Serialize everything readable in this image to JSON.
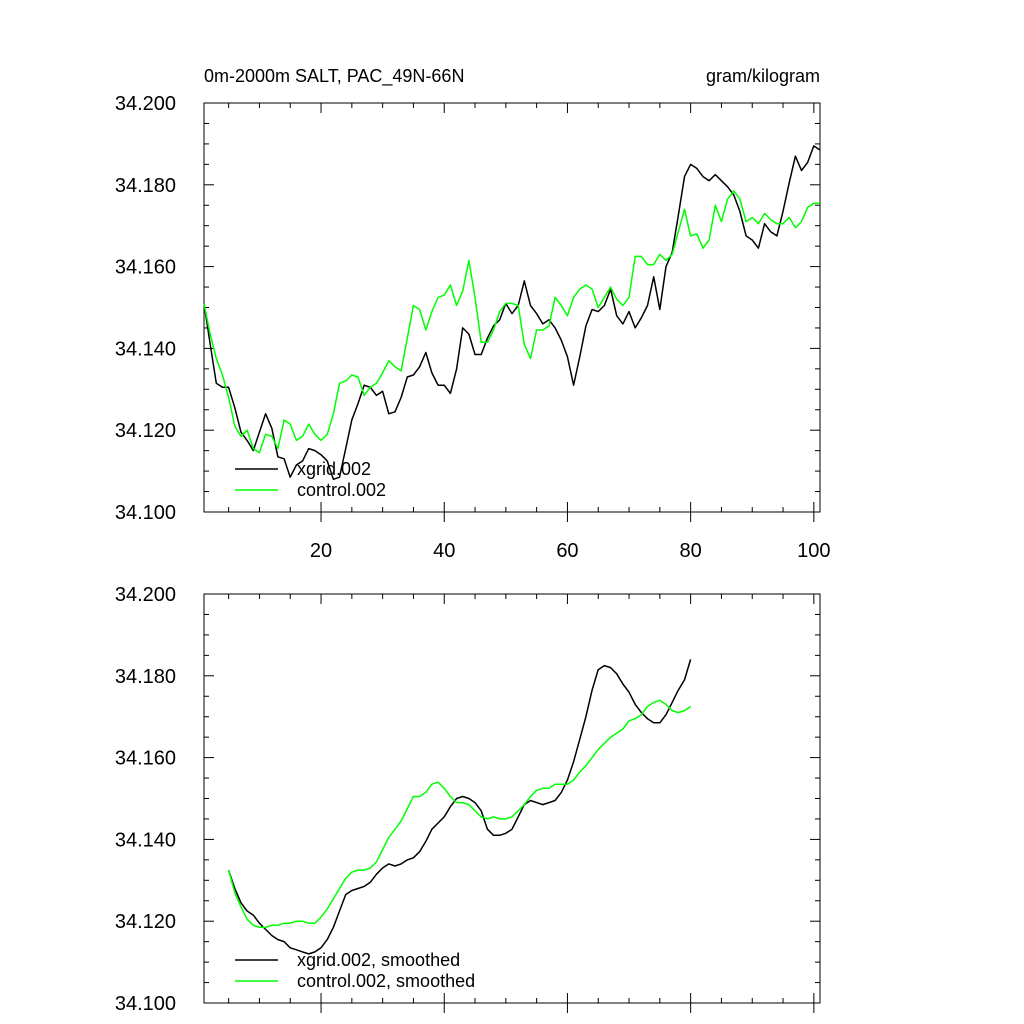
{
  "header": {
    "title": "0m-2000m SALT, PAC_49N-66N",
    "units": "gram/kilogram"
  },
  "colors": {
    "xgrid": "#000000",
    "control": "#00ff00"
  },
  "chart_data": [
    {
      "type": "line",
      "xlim": [
        1,
        101
      ],
      "ylim": [
        34.1,
        34.2
      ],
      "yticks": [
        "34.100",
        "34.120",
        "34.140",
        "34.160",
        "34.180",
        "34.200"
      ],
      "xticks": [
        "20",
        "40",
        "60",
        "80",
        "100"
      ],
      "x_tick_values": [
        20,
        40,
        60,
        80,
        100
      ],
      "legend_position": "bottom-left",
      "series": [
        {
          "name": "xgrid.002",
          "color_key": "xgrid",
          "x_start": 1,
          "values": [
            34.151,
            34.141,
            34.1315,
            34.1305,
            34.1305,
            34.1255,
            34.1195,
            34.1175,
            34.115,
            34.1195,
            34.124,
            34.1205,
            34.1135,
            34.113,
            34.1085,
            34.1115,
            34.1125,
            34.1155,
            34.115,
            34.114,
            34.1125,
            34.108,
            34.1085,
            34.1155,
            34.1225,
            34.1265,
            34.131,
            34.1305,
            34.1285,
            34.1295,
            34.124,
            34.1245,
            34.128,
            34.133,
            34.1335,
            34.1355,
            34.139,
            34.134,
            34.131,
            34.131,
            34.129,
            34.135,
            34.145,
            34.1435,
            34.1385,
            34.1385,
            34.1425,
            34.1455,
            34.147,
            34.151,
            34.1485,
            34.1505,
            34.1565,
            34.1505,
            34.1485,
            34.146,
            34.147,
            34.145,
            34.142,
            34.138,
            34.131,
            34.138,
            34.1455,
            34.1495,
            34.149,
            34.1505,
            34.1545,
            34.148,
            34.146,
            34.149,
            34.145,
            34.1475,
            34.1505,
            34.1575,
            34.1495,
            34.16,
            34.1635,
            34.1725,
            34.182,
            34.185,
            34.184,
            34.182,
            34.181,
            34.1825,
            34.181,
            34.1795,
            34.1775,
            34.1735,
            34.1675,
            34.1665,
            34.1645,
            34.1705,
            34.1685,
            34.1675,
            34.1735,
            34.1805,
            34.187,
            34.1835,
            34.1855,
            34.1895,
            34.1885
          ]
        },
        {
          "name": "control.002",
          "color_key": "control",
          "x_start": 1,
          "values": [
            34.151,
            34.1435,
            34.1375,
            34.1335,
            34.128,
            34.121,
            34.1185,
            34.12,
            34.1155,
            34.1145,
            34.119,
            34.1185,
            34.1155,
            34.1225,
            34.1215,
            34.1175,
            34.1185,
            34.1215,
            34.119,
            34.1175,
            34.119,
            34.124,
            34.1315,
            34.132,
            34.1335,
            34.133,
            34.1285,
            34.1305,
            34.1315,
            34.134,
            34.137,
            34.1355,
            34.1345,
            34.1425,
            34.1505,
            34.1495,
            34.1445,
            34.149,
            34.1525,
            34.153,
            34.1555,
            34.1505,
            34.154,
            34.1615,
            34.1525,
            34.1415,
            34.1415,
            34.1445,
            34.149,
            34.151,
            34.151,
            34.1505,
            34.141,
            34.1375,
            34.1445,
            34.1445,
            34.1455,
            34.1525,
            34.1505,
            34.148,
            34.1525,
            34.1545,
            34.1555,
            34.1545,
            34.15,
            34.1525,
            34.155,
            34.152,
            34.1505,
            34.1525,
            34.1625,
            34.1625,
            34.1605,
            34.1605,
            34.163,
            34.1615,
            34.163,
            34.1685,
            34.174,
            34.1675,
            34.168,
            34.1645,
            34.1665,
            34.175,
            34.171,
            34.1765,
            34.1785,
            34.1765,
            34.171,
            34.172,
            34.1705,
            34.173,
            34.1715,
            34.1705,
            34.1705,
            34.172,
            34.1695,
            34.171,
            34.1745,
            34.1755,
            34.1755
          ]
        }
      ]
    },
    {
      "type": "line",
      "xlim": [
        1,
        101
      ],
      "ylim": [
        34.1,
        34.2
      ],
      "yticks": [
        "34.100",
        "34.120",
        "34.140",
        "34.160",
        "34.180",
        "34.200"
      ],
      "xticks": [],
      "x_tick_values": [
        20,
        40,
        60,
        80,
        100
      ],
      "legend_position": "bottom-left",
      "series": [
        {
          "name": "xgrid.002, smoothed",
          "color_key": "xgrid",
          "x_start": 5,
          "values": [
            34.1325,
            34.128,
            34.1245,
            34.1225,
            34.1215,
            34.1195,
            34.118,
            34.1165,
            34.1155,
            34.115,
            34.1135,
            34.113,
            34.1125,
            34.112,
            34.1125,
            34.1135,
            34.1155,
            34.1185,
            34.1225,
            34.1265,
            34.1275,
            34.128,
            34.1285,
            34.1295,
            34.1315,
            34.133,
            34.134,
            34.1335,
            34.134,
            34.135,
            34.1355,
            34.137,
            34.1395,
            34.1425,
            34.144,
            34.1455,
            34.148,
            34.15,
            34.1505,
            34.15,
            34.149,
            34.147,
            34.1425,
            34.141,
            34.141,
            34.1415,
            34.1425,
            34.1455,
            34.1485,
            34.1495,
            34.149,
            34.1485,
            34.149,
            34.1495,
            34.1515,
            34.1545,
            34.159,
            34.1645,
            34.17,
            34.1765,
            34.1815,
            34.1825,
            34.182,
            34.1805,
            34.178,
            34.176,
            34.173,
            34.171,
            34.1695,
            34.1685,
            34.1685,
            34.1705,
            34.1735,
            34.1765,
            34.179,
            34.184
          ]
        },
        {
          "name": "control.002, smoothed",
          "color_key": "control",
          "x_start": 5,
          "values": [
            34.1325,
            34.127,
            34.1235,
            34.1205,
            34.119,
            34.1185,
            34.1185,
            34.119,
            34.119,
            34.1195,
            34.1195,
            34.12,
            34.12,
            34.1195,
            34.1195,
            34.121,
            34.123,
            34.1255,
            34.128,
            34.1305,
            34.132,
            34.1325,
            34.1325,
            34.133,
            34.1345,
            34.1375,
            34.1405,
            34.1425,
            34.1445,
            34.1475,
            34.1505,
            34.1505,
            34.1515,
            34.1535,
            34.154,
            34.1525,
            34.1505,
            34.149,
            34.149,
            34.1485,
            34.147,
            34.1455,
            34.145,
            34.1455,
            34.145,
            34.145,
            34.1455,
            34.147,
            34.1485,
            34.1505,
            34.152,
            34.1525,
            34.1525,
            34.1535,
            34.1535,
            34.1535,
            34.1545,
            34.1565,
            34.158,
            34.16,
            34.162,
            34.1635,
            34.165,
            34.166,
            34.167,
            34.169,
            34.1695,
            34.1705,
            34.1725,
            34.1735,
            34.174,
            34.173,
            34.1715,
            34.171,
            34.1715,
            34.1725
          ]
        }
      ]
    }
  ]
}
